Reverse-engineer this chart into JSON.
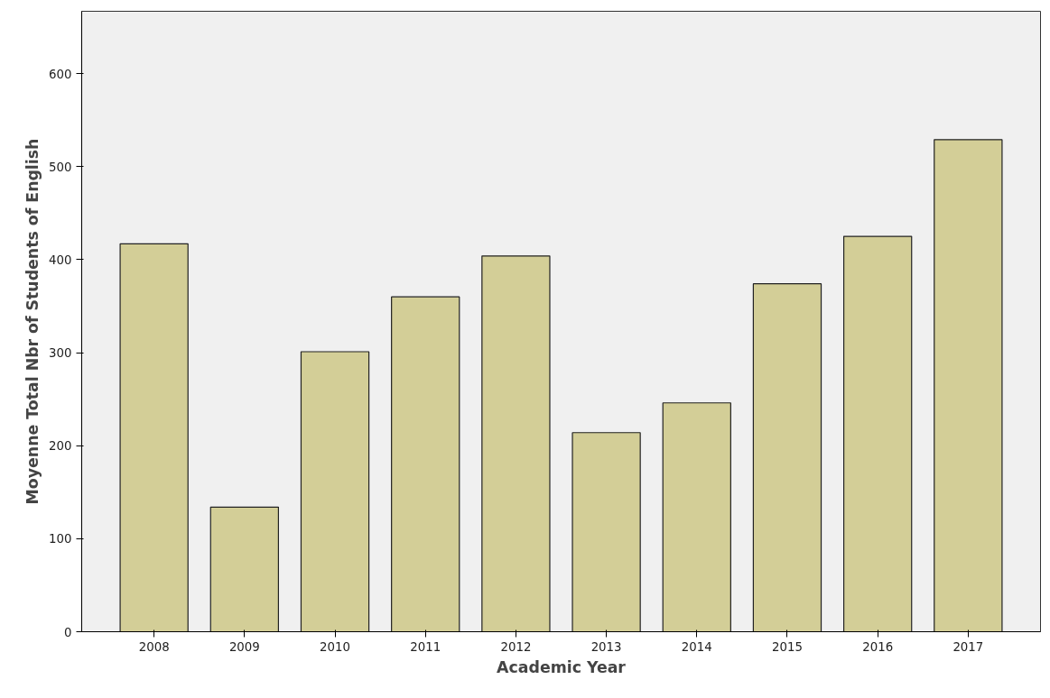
{
  "chart_data": {
    "type": "bar",
    "xlabel": "Academic Year",
    "ylabel": "Moyenne Total Nbr of Students of English",
    "categories": [
      "2008",
      "2009",
      "2010",
      "2011",
      "2012",
      "2013",
      "2014",
      "2015",
      "2016",
      "2017"
    ],
    "values": [
      417,
      134,
      301,
      360,
      404,
      214,
      246,
      374,
      425,
      529
    ],
    "color": "#d3ce97",
    "ylim": [
      0,
      667
    ],
    "yticks": [
      0,
      100,
      200,
      300,
      400,
      500,
      600
    ],
    "grid": false
  }
}
